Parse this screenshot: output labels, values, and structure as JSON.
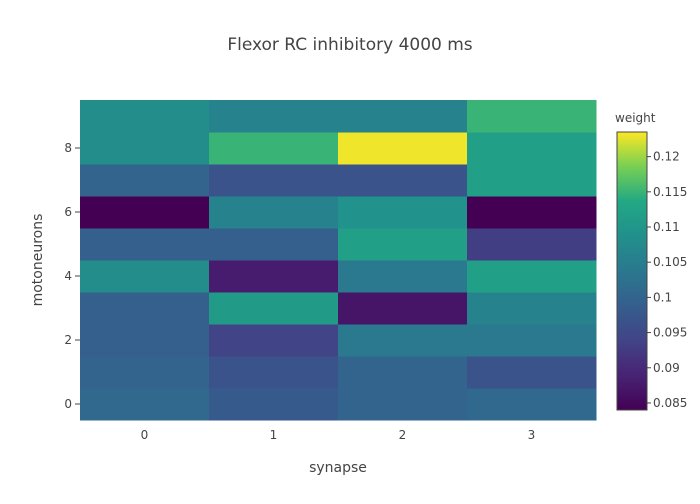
{
  "chart_data": {
    "type": "heatmap",
    "title": "Flexor RC inhibitory 4000 ms",
    "xlabel": "synapse",
    "ylabel": "motoneurons",
    "x": [
      0,
      1,
      2,
      3
    ],
    "y": [
      0,
      1,
      2,
      3,
      4,
      5,
      6,
      7,
      8,
      9
    ],
    "x_tick_labels": [
      "0",
      "1",
      "2",
      "3"
    ],
    "y_tick_values": [
      0,
      2,
      4,
      6,
      8
    ],
    "y_tick_labels": [
      "0",
      "2",
      "4",
      "6",
      "8"
    ],
    "z": [
      [
        0.101,
        0.098,
        0.1,
        0.101
      ],
      [
        0.1,
        0.097,
        0.1,
        0.097
      ],
      [
        0.099,
        0.094,
        0.104,
        0.104
      ],
      [
        0.099,
        0.111,
        0.087,
        0.106
      ],
      [
        0.108,
        0.088,
        0.104,
        0.112
      ],
      [
        0.099,
        0.099,
        0.112,
        0.093
      ],
      [
        0.084,
        0.106,
        0.109,
        0.084
      ],
      [
        0.1,
        0.097,
        0.097,
        0.112
      ],
      [
        0.108,
        0.115,
        0.123,
        0.112
      ],
      [
        0.108,
        0.106,
        0.106,
        0.115
      ]
    ],
    "zmin": 0.084,
    "zmax": 0.1235,
    "colorscale": "Viridis",
    "colorbar": {
      "title": "weight",
      "tick_values": [
        0.085,
        0.09,
        0.095,
        0.1,
        0.105,
        0.11,
        0.115,
        0.12
      ],
      "tick_labels": [
        "0.085",
        "0.09",
        "0.095",
        "0.1",
        "0.105",
        "0.11",
        "0.115",
        "0.12"
      ]
    },
    "grid": false
  }
}
